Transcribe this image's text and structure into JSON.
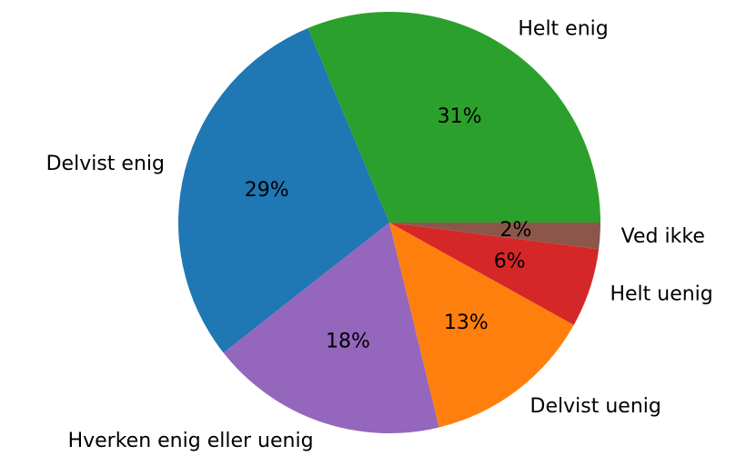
{
  "chart_data": {
    "type": "pie",
    "categories": [
      "Helt enig",
      "Delvist enig",
      "Hverken enig eller uenig",
      "Delvist uenig",
      "Helt uenig",
      "Ved ikke"
    ],
    "values": [
      31,
      29,
      18,
      13,
      6,
      2
    ],
    "value_labels": [
      "31%",
      "29%",
      "18%",
      "13%",
      "6%",
      "2%"
    ],
    "colors": [
      "#2ca02c",
      "#1f77b4",
      "#9467bd",
      "#ff7f0e",
      "#d62728",
      "#8c564b"
    ]
  }
}
